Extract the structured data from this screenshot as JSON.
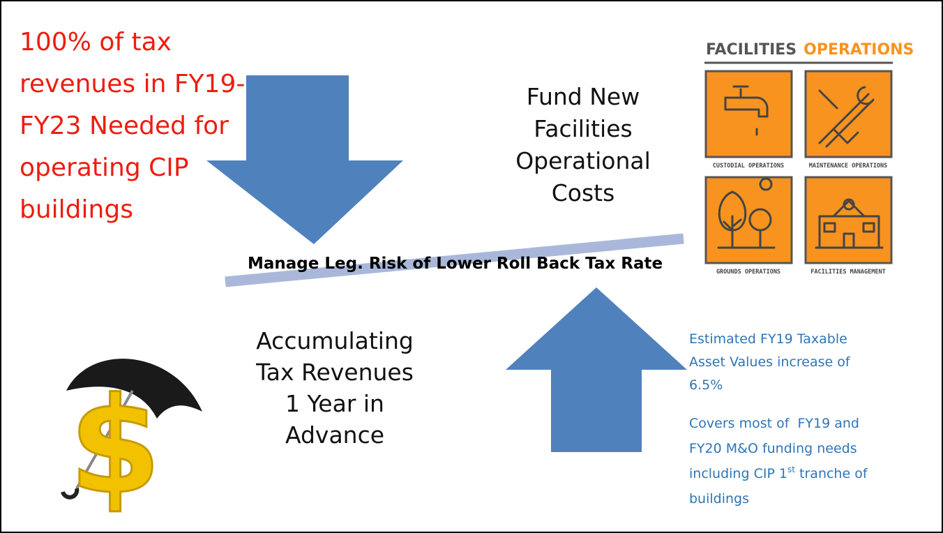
{
  "slide": {
    "left_note": {
      "lines": [
        "100% of tax",
        "revenues in FY19-",
        "FY23 Needed for",
        "operating CIP",
        "buildings"
      ]
    },
    "top_label": {
      "lines": [
        "Fund  New",
        "Facilities",
        "Operational",
        "Costs"
      ]
    },
    "balance_label": "Manage Leg. Risk of Lower Roll Back Tax Rate",
    "bottom_label": {
      "lines": [
        "Accumulating",
        "Tax Revenues",
        "1 Year in",
        "Advance"
      ]
    },
    "right_note_1": {
      "lines": [
        "Estimated FY19 Taxable",
        "Asset Values increase of",
        "6.5%"
      ]
    },
    "right_note_2": {
      "line1": "Covers most of  FY19 and",
      "line2": "FY20 M&O funding needs",
      "line3_text": "including CIP 1",
      "line3_sup": "st",
      "line3_rest": " tranche of",
      "line4": "buildings"
    },
    "infographic": {
      "title_1": "FACILITIES",
      "title_2": "OPERATIONS",
      "tiles": [
        "CUSTODIAL OPERATIONS",
        "MAINTENANCE OPERATIONS",
        "GROUNDS OPERATIONS",
        "FACILITIES MANAGEMENT"
      ]
    }
  }
}
